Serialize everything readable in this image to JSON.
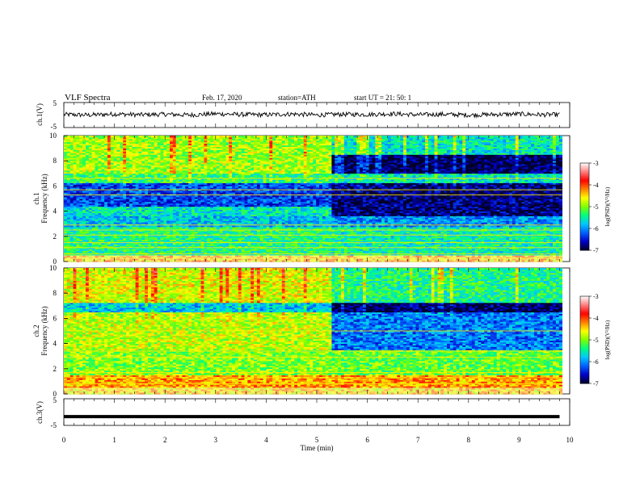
{
  "header": {
    "title": "VLF  Spectra",
    "date": "Feb. 17, 2020",
    "station": "station=ATH",
    "start": "start  UT  =    21: 50: 1"
  },
  "colormap_stops": [
    "#000028",
    "#0000c8",
    "#0060ff",
    "#00c8ff",
    "#00ff80",
    "#80ff00",
    "#ffff00",
    "#ff8000",
    "#ff0000",
    "#ff8080",
    "#ffffff"
  ],
  "chart_data": [
    {
      "type": "line",
      "panel": "ch1-waveform",
      "ylabel": "ch.1(V)",
      "ylim": [
        -5,
        5
      ],
      "yticks": [
        "5",
        "-5"
      ],
      "x": [
        0,
        0.5,
        1,
        1.5,
        2,
        2.5,
        3,
        3.5,
        4,
        4.5,
        5,
        5.5,
        6,
        6.5,
        7,
        7.5,
        8,
        8.5,
        9,
        9.5,
        9.8
      ],
      "y": [
        0.2,
        0.0,
        0.4,
        0.1,
        0.3,
        0.0,
        0.5,
        0.2,
        0.1,
        0.4,
        0.0,
        0.3,
        0.2,
        0.5,
        0.1,
        0.3,
        0.0,
        0.2,
        0.4,
        0.1,
        0.2
      ]
    },
    {
      "type": "heatmap",
      "panel": "ch1-spectrogram",
      "ylabel": "ch.1\nFrequency  (kHz)",
      "ylim": [
        0,
        10
      ],
      "yticks": [
        "0",
        "2",
        "4",
        "6",
        "8",
        "10"
      ],
      "colorbar": {
        "label": "log(PSD)(V²/Hz)",
        "range": [
          -7,
          -3
        ],
        "ticks": [
          "-3",
          "-4",
          "-5",
          "-6",
          "-7"
        ]
      },
      "x_change_min": 5.25,
      "regions_before_change": [
        {
          "f": [
            0,
            0.5
          ],
          "level": -4.4
        },
        {
          "f": [
            0.5,
            2.8
          ],
          "level": -5.4
        },
        {
          "f": [
            2.8,
            3.6
          ],
          "level": -5.8
        },
        {
          "f": [
            3.6,
            4.4
          ],
          "level": -5.6
        },
        {
          "f": [
            4.4,
            6.2
          ],
          "level": -6.3
        },
        {
          "f": [
            6.2,
            7.0
          ],
          "level": -5.3
        },
        {
          "f": [
            7.0,
            10
          ],
          "level": -4.9
        }
      ],
      "regions_after_change": [
        {
          "f": [
            0,
            0.5
          ],
          "level": -4.4
        },
        {
          "f": [
            0.5,
            2.8
          ],
          "level": -5.5
        },
        {
          "f": [
            2.8,
            3.6
          ],
          "level": -6.0
        },
        {
          "f": [
            3.6,
            6.2
          ],
          "level": -6.8
        },
        {
          "f": [
            6.2,
            7.0
          ],
          "level": -5.6
        },
        {
          "f": [
            7.0,
            8.5
          ],
          "level": -6.9
        },
        {
          "f": [
            8.5,
            10
          ],
          "level": -5.6
        }
      ],
      "lines_khz": [
        0.25,
        0.6,
        1.1,
        1.5,
        2.1,
        2.5,
        2.9,
        5.3,
        5.7,
        6.6
      ]
    },
    {
      "type": "heatmap",
      "panel": "ch2-spectrogram",
      "ylabel": "ch.2\nFrequency  (kHz)",
      "ylim": [
        0,
        10
      ],
      "yticks": [
        "0",
        "2",
        "4",
        "6",
        "8",
        "10"
      ],
      "colorbar": {
        "label": "log(PSD)(V²/Hz)",
        "range": [
          -7,
          -3
        ],
        "ticks": [
          "-3",
          "-4",
          "-5",
          "-6",
          "-7"
        ]
      },
      "x_change_min": 5.25,
      "regions_before_change": [
        {
          "f": [
            0,
            0.5
          ],
          "level": -4.5
        },
        {
          "f": [
            0.5,
            1.5
          ],
          "level": -4.3
        },
        {
          "f": [
            1.5,
            3.5
          ],
          "level": -5.0
        },
        {
          "f": [
            3.5,
            6.5
          ],
          "level": -4.8
        },
        {
          "f": [
            6.5,
            7.3
          ],
          "level": -5.8
        },
        {
          "f": [
            7.3,
            10
          ],
          "level": -4.7
        }
      ],
      "regions_after_change": [
        {
          "f": [
            0,
            0.5
          ],
          "level": -4.5
        },
        {
          "f": [
            0.5,
            1.5
          ],
          "level": -4.3
        },
        {
          "f": [
            1.5,
            3.5
          ],
          "level": -5.1
        },
        {
          "f": [
            3.5,
            6.5
          ],
          "level": -6.1
        },
        {
          "f": [
            6.5,
            7.3
          ],
          "level": -6.9
        },
        {
          "f": [
            7.3,
            10
          ],
          "level": -5.4
        }
      ],
      "lines_khz": [
        0.8,
        1.3,
        1.7,
        2.9,
        3.4,
        5.0
      ]
    },
    {
      "type": "line",
      "panel": "ch3-waveform",
      "ylabel": "ch.3(V)",
      "ylim": [
        -5,
        5
      ],
      "yticks": [
        "5",
        "-5"
      ],
      "x": [
        0,
        9.8
      ],
      "y": [
        -1.7,
        -1.7
      ]
    }
  ],
  "xaxis": {
    "label": "Time  (min)",
    "ticks": [
      "0",
      "1",
      "2",
      "3",
      "4",
      "5",
      "6",
      "7",
      "8",
      "9",
      "10"
    ],
    "xlim": [
      0,
      10
    ]
  }
}
